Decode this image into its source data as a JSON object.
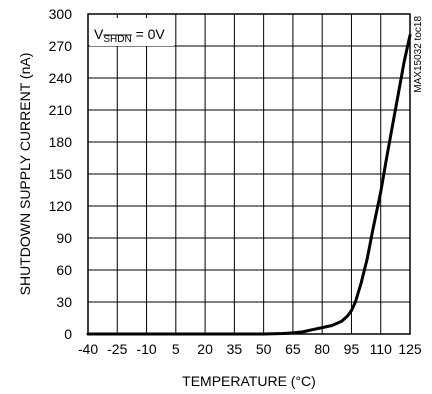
{
  "chart_data": {
    "type": "line",
    "title": "",
    "xlabel": "TEMPERATURE (°C)",
    "ylabel": "SHUTDOWN SUPPLY CURRENT (nA)",
    "xlim": [
      -40,
      125
    ],
    "ylim": [
      0,
      300
    ],
    "x_ticks": [
      "-40",
      "-25",
      "-10",
      "5",
      "20",
      "35",
      "50",
      "65",
      "80",
      "95",
      "110",
      "125"
    ],
    "y_ticks": [
      "0",
      "30",
      "60",
      "90",
      "120",
      "150",
      "180",
      "210",
      "240",
      "270",
      "300"
    ],
    "grid": true,
    "series": [
      {
        "x": [
          -40,
          -25,
          -10,
          5,
          20,
          35,
          50,
          60,
          65,
          70,
          75,
          80,
          85,
          90,
          93,
          95,
          97,
          100,
          103,
          106,
          110,
          113,
          116,
          119,
          122,
          125
        ],
        "y": [
          0,
          0,
          0,
          0,
          0,
          0,
          0,
          0.5,
          1,
          2,
          4,
          6,
          8,
          12,
          17,
          22,
          30,
          48,
          70,
          98,
          133,
          165,
          195,
          225,
          255,
          280
        ]
      }
    ],
    "annotation": {
      "prefix": "V",
      "subscript": "SHDN",
      "suffix": " = 0V"
    },
    "side_label": "MAX15032 toc18"
  }
}
